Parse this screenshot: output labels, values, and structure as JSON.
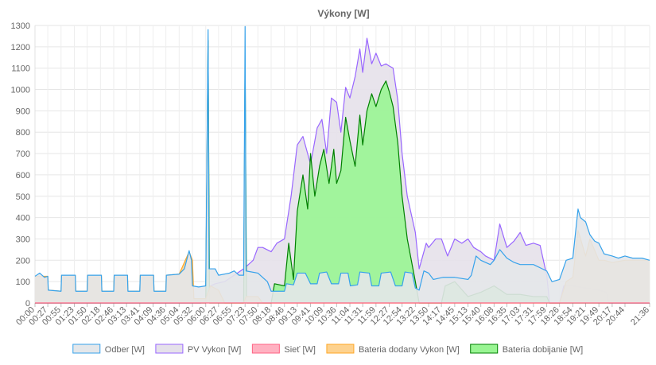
{
  "chart_data": {
    "type": "area",
    "title": "Výkony [W]",
    "xlabel": "",
    "ylabel": "",
    "ylim": [
      0,
      1300
    ],
    "yticks": [
      0,
      100,
      200,
      300,
      400,
      500,
      600,
      700,
      800,
      900,
      1000,
      1100,
      1200,
      1300
    ],
    "grid": true,
    "legend_position": "bottom",
    "x_unit": "time of day (HH:MM)",
    "xtick_labels": [
      "00:00",
      "00:27",
      "00:55",
      "01:23",
      "01:50",
      "02:18",
      "02:46",
      "03:13",
      "03:41",
      "04:09",
      "04:36",
      "05:04",
      "05:32",
      "06:00",
      "06:27",
      "06:55",
      "07:23",
      "07:50",
      "08:18",
      "08:46",
      "09:13",
      "09:41",
      "10:09",
      "10:36",
      "11:04",
      "11:31",
      "11:59",
      "12:27",
      "12:54",
      "13:22",
      "13:50",
      "14:17",
      "14:45",
      "15:13",
      "15:40",
      "16:08",
      "16:35",
      "17:03",
      "17:31",
      "17:59",
      "18:26",
      "18:54",
      "19:21",
      "19:49",
      "20:17",
      "20:44",
      "21:36"
    ],
    "series": [
      {
        "name": "Odber [W]",
        "color": "#36a2eb",
        "fill": "#e4e7ea",
        "points": [
          [
            "00:00",
            125
          ],
          [
            "00:10",
            140
          ],
          [
            "00:20",
            120
          ],
          [
            "00:27",
            125
          ],
          [
            "00:28",
            60
          ],
          [
            "00:55",
            55
          ],
          [
            "00:56",
            130
          ],
          [
            "01:25",
            130
          ],
          [
            "01:26",
            55
          ],
          [
            "01:50",
            55
          ],
          [
            "01:51",
            130
          ],
          [
            "02:20",
            130
          ],
          [
            "02:21",
            55
          ],
          [
            "02:46",
            55
          ],
          [
            "02:47",
            130
          ],
          [
            "03:15",
            130
          ],
          [
            "03:16",
            55
          ],
          [
            "03:41",
            55
          ],
          [
            "03:42",
            130
          ],
          [
            "04:10",
            130
          ],
          [
            "04:11",
            55
          ],
          [
            "04:36",
            55
          ],
          [
            "04:37",
            130
          ],
          [
            "05:04",
            135
          ],
          [
            "05:15",
            160
          ],
          [
            "05:25",
            245
          ],
          [
            "05:30",
            200
          ],
          [
            "05:32",
            80
          ],
          [
            "05:45",
            75
          ],
          [
            "06:00",
            80
          ],
          [
            "06:05",
            1280
          ],
          [
            "06:07",
            160
          ],
          [
            "06:20",
            160
          ],
          [
            "06:27",
            130
          ],
          [
            "06:50",
            140
          ],
          [
            "07:00",
            150
          ],
          [
            "07:10",
            130
          ],
          [
            "07:20",
            130
          ],
          [
            "07:23",
            1295
          ],
          [
            "07:25",
            150
          ],
          [
            "07:50",
            140
          ],
          [
            "08:10",
            100
          ],
          [
            "08:18",
            55
          ],
          [
            "08:46",
            55
          ],
          [
            "08:50",
            90
          ],
          [
            "09:05",
            85
          ],
          [
            "09:13",
            140
          ],
          [
            "09:30",
            140
          ],
          [
            "09:41",
            90
          ],
          [
            "09:55",
            90
          ],
          [
            "10:00",
            140
          ],
          [
            "10:15",
            145
          ],
          [
            "10:25",
            90
          ],
          [
            "10:40",
            90
          ],
          [
            "10:45",
            140
          ],
          [
            "11:00",
            140
          ],
          [
            "11:05",
            80
          ],
          [
            "11:20",
            85
          ],
          [
            "11:25",
            145
          ],
          [
            "11:45",
            140
          ],
          [
            "11:50",
            80
          ],
          [
            "12:05",
            80
          ],
          [
            "12:10",
            140
          ],
          [
            "12:30",
            145
          ],
          [
            "12:40",
            80
          ],
          [
            "12:54",
            80
          ],
          [
            "13:00",
            145
          ],
          [
            "13:15",
            140
          ],
          [
            "13:22",
            70
          ],
          [
            "13:30",
            60
          ],
          [
            "13:40",
            150
          ],
          [
            "13:50",
            140
          ],
          [
            "14:00",
            110
          ],
          [
            "14:20",
            120
          ],
          [
            "14:45",
            120
          ],
          [
            "15:13",
            110
          ],
          [
            "15:20",
            130
          ],
          [
            "15:30",
            220
          ],
          [
            "15:40",
            200
          ],
          [
            "16:00",
            180
          ],
          [
            "16:08",
            200
          ],
          [
            "16:20",
            250
          ],
          [
            "16:35",
            210
          ],
          [
            "16:50",
            190
          ],
          [
            "17:03",
            180
          ],
          [
            "17:31",
            180
          ],
          [
            "17:59",
            150
          ],
          [
            "18:10",
            100
          ],
          [
            "18:26",
            110
          ],
          [
            "18:40",
            200
          ],
          [
            "18:54",
            210
          ],
          [
            "19:05",
            440
          ],
          [
            "19:10",
            400
          ],
          [
            "19:21",
            380
          ],
          [
            "19:30",
            320
          ],
          [
            "19:40",
            290
          ],
          [
            "19:49",
            280
          ],
          [
            "20:00",
            230
          ],
          [
            "20:17",
            220
          ],
          [
            "20:30",
            210
          ],
          [
            "20:44",
            220
          ],
          [
            "21:00",
            210
          ],
          [
            "21:20",
            210
          ],
          [
            "21:36",
            200
          ]
        ]
      },
      {
        "name": "PV Vykon [W]",
        "color": "#9966ff",
        "fill": "#e5e1ea",
        "points": [
          [
            "00:00",
            0
          ],
          [
            "05:50",
            0
          ],
          [
            "06:00",
            10
          ],
          [
            "06:10",
            80
          ],
          [
            "06:20",
            90
          ],
          [
            "06:40",
            100
          ],
          [
            "07:00",
            130
          ],
          [
            "07:20",
            160
          ],
          [
            "07:40",
            200
          ],
          [
            "07:50",
            260
          ],
          [
            "08:00",
            260
          ],
          [
            "08:18",
            240
          ],
          [
            "08:30",
            280
          ],
          [
            "08:46",
            300
          ],
          [
            "09:00",
            500
          ],
          [
            "09:13",
            740
          ],
          [
            "09:25",
            780
          ],
          [
            "09:41",
            650
          ],
          [
            "09:55",
            820
          ],
          [
            "10:05",
            860
          ],
          [
            "10:15",
            700
          ],
          [
            "10:25",
            960
          ],
          [
            "10:36",
            940
          ],
          [
            "10:45",
            800
          ],
          [
            "10:55",
            1010
          ],
          [
            "11:04",
            960
          ],
          [
            "11:15",
            1060
          ],
          [
            "11:25",
            1190
          ],
          [
            "11:31",
            1080
          ],
          [
            "11:40",
            1240
          ],
          [
            "11:50",
            1120
          ],
          [
            "11:59",
            1170
          ],
          [
            "12:10",
            1110
          ],
          [
            "12:20",
            1120
          ],
          [
            "12:27",
            1110
          ],
          [
            "12:35",
            1100
          ],
          [
            "12:45",
            950
          ],
          [
            "12:54",
            700
          ],
          [
            "13:05",
            500
          ],
          [
            "13:15",
            400
          ],
          [
            "13:22",
            330
          ],
          [
            "13:30",
            160
          ],
          [
            "13:45",
            280
          ],
          [
            "13:50",
            260
          ],
          [
            "14:05",
            300
          ],
          [
            "14:17",
            300
          ],
          [
            "14:30",
            220
          ],
          [
            "14:45",
            300
          ],
          [
            "15:00",
            280
          ],
          [
            "15:13",
            300
          ],
          [
            "15:25",
            260
          ],
          [
            "15:40",
            240
          ],
          [
            "15:50",
            220
          ],
          [
            "16:08",
            200
          ],
          [
            "16:20",
            370
          ],
          [
            "16:35",
            260
          ],
          [
            "16:50",
            290
          ],
          [
            "17:03",
            330
          ],
          [
            "17:15",
            270
          ],
          [
            "17:31",
            280
          ],
          [
            "17:45",
            270
          ],
          [
            "17:59",
            130
          ],
          [
            "18:05",
            0
          ],
          [
            "18:26",
            0
          ],
          [
            "18:35",
            80
          ],
          [
            "18:54",
            80
          ],
          [
            "19:21",
            70
          ],
          [
            "19:49",
            60
          ],
          [
            "20:05",
            50
          ],
          [
            "20:10",
            0
          ],
          [
            "21:36",
            0
          ]
        ]
      },
      {
        "name": "Sieť [W]",
        "color": "#ff6384",
        "fill": "#ffb1c1",
        "points": [
          [
            "00:00",
            0
          ],
          [
            "21:36",
            0
          ]
        ]
      },
      {
        "name": "Bateria dodany Vykon [W]",
        "color": "#ffa726",
        "fill": "#fdd28f",
        "points": [
          [
            "00:00",
            125
          ],
          [
            "00:27",
            125
          ],
          [
            "00:28",
            60
          ],
          [
            "00:55",
            55
          ],
          [
            "00:56",
            130
          ],
          [
            "01:25",
            130
          ],
          [
            "01:26",
            55
          ],
          [
            "01:50",
            55
          ],
          [
            "01:51",
            130
          ],
          [
            "02:20",
            130
          ],
          [
            "02:21",
            55
          ],
          [
            "02:46",
            55
          ],
          [
            "02:47",
            130
          ],
          [
            "03:15",
            130
          ],
          [
            "03:16",
            55
          ],
          [
            "03:41",
            55
          ],
          [
            "03:42",
            130
          ],
          [
            "04:10",
            130
          ],
          [
            "04:11",
            55
          ],
          [
            "04:36",
            55
          ],
          [
            "04:37",
            130
          ],
          [
            "05:04",
            135
          ],
          [
            "05:25",
            240
          ],
          [
            "05:32",
            200
          ],
          [
            "05:35",
            20
          ],
          [
            "06:00",
            20
          ],
          [
            "06:10",
            80
          ],
          [
            "06:27",
            60
          ],
          [
            "06:40",
            0
          ],
          [
            "07:20",
            0
          ],
          [
            "07:25",
            30
          ],
          [
            "07:50",
            30
          ],
          [
            "08:00",
            0
          ],
          [
            "18:26",
            0
          ],
          [
            "18:40",
            100
          ],
          [
            "18:54",
            120
          ],
          [
            "19:05",
            340
          ],
          [
            "19:21",
            220
          ],
          [
            "19:30",
            300
          ],
          [
            "19:49",
            200
          ],
          [
            "20:00",
            200
          ],
          [
            "20:17",
            190
          ],
          [
            "20:44",
            200
          ],
          [
            "21:00",
            200
          ],
          [
            "21:36",
            200
          ]
        ]
      },
      {
        "name": "Bateria dobijanie [W]",
        "color": "#008000",
        "fill": "#99f593",
        "points": [
          [
            "00:00",
            0
          ],
          [
            "06:00",
            0
          ],
          [
            "06:05",
            1230
          ],
          [
            "06:08",
            0
          ],
          [
            "07:20",
            0
          ],
          [
            "07:23",
            1130
          ],
          [
            "07:26",
            0
          ],
          [
            "07:50",
            0
          ],
          [
            "08:18",
            0
          ],
          [
            "08:25",
            90
          ],
          [
            "08:46",
            80
          ],
          [
            "08:55",
            280
          ],
          [
            "09:05",
            110
          ],
          [
            "09:13",
            430
          ],
          [
            "09:25",
            600
          ],
          [
            "09:35",
            440
          ],
          [
            "09:41",
            700
          ],
          [
            "09:50",
            500
          ],
          [
            "10:00",
            640
          ],
          [
            "10:09",
            720
          ],
          [
            "10:20",
            560
          ],
          [
            "10:30",
            720
          ],
          [
            "10:36",
            560
          ],
          [
            "10:45",
            620
          ],
          [
            "10:55",
            870
          ],
          [
            "11:04",
            760
          ],
          [
            "11:15",
            640
          ],
          [
            "11:25",
            880
          ],
          [
            "11:31",
            740
          ],
          [
            "11:40",
            900
          ],
          [
            "11:50",
            980
          ],
          [
            "11:59",
            920
          ],
          [
            "12:10",
            1000
          ],
          [
            "12:20",
            1040
          ],
          [
            "12:27",
            990
          ],
          [
            "12:35",
            920
          ],
          [
            "12:45",
            750
          ],
          [
            "12:54",
            500
          ],
          [
            "13:05",
            300
          ],
          [
            "13:22",
            100
          ],
          [
            "13:30",
            0
          ],
          [
            "14:17",
            0
          ],
          [
            "14:25",
            80
          ],
          [
            "14:45",
            100
          ],
          [
            "15:13",
            30
          ],
          [
            "15:40",
            50
          ],
          [
            "16:08",
            80
          ],
          [
            "16:35",
            40
          ],
          [
            "17:03",
            40
          ],
          [
            "17:31",
            30
          ],
          [
            "17:59",
            30
          ],
          [
            "18:05",
            0
          ],
          [
            "21:36",
            0
          ]
        ]
      }
    ]
  },
  "legend": [
    {
      "label": "Odber [W]",
      "stroke": "#36a2eb",
      "fill": "#e4e7ea"
    },
    {
      "label": "PV Vykon [W]",
      "stroke": "#9966ff",
      "fill": "#e5e1ea"
    },
    {
      "label": "Sieť [W]",
      "stroke": "#ff6384",
      "fill": "#ffb1c1"
    },
    {
      "label": "Bateria dodany Vykon [W]",
      "stroke": "#ffa726",
      "fill": "#fdd28f"
    },
    {
      "label": "Bateria dobijanie [W]",
      "stroke": "#008000",
      "fill": "#99f593"
    }
  ]
}
